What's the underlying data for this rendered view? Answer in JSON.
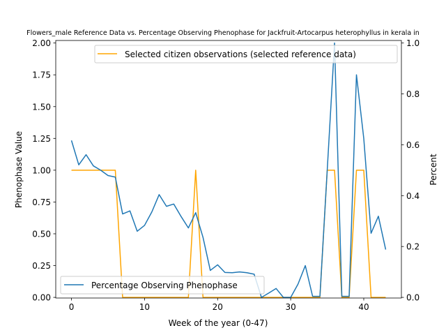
{
  "chart_data": {
    "type": "line",
    "title": "Flowers_male Reference Data vs. Percentage Observing Phenophase for Jackfruit-Artocarpus heterophyllus in kerala in",
    "xlabel": "Week of the year (0-47)",
    "ylabel_left": "Phenophase Value",
    "ylabel_right": "Percent",
    "xlim": [
      -2.15,
      45.15
    ],
    "ylim_left": [
      -0.005,
      2.02
    ],
    "ylim_right": [
      -0.0025,
      1.01
    ],
    "x_ticks": [
      0,
      10,
      20,
      30,
      40
    ],
    "y_ticks_left": [
      0.0,
      0.25,
      0.5,
      0.75,
      1.0,
      1.25,
      1.5,
      1.75,
      2.0
    ],
    "y_ticks_left_labels": [
      "0.00",
      "0.25",
      "0.50",
      "0.75",
      "1.00",
      "1.25",
      "1.50",
      "1.75",
      "2.00"
    ],
    "y_ticks_right": [
      0.0,
      0.2,
      0.4,
      0.6,
      0.8,
      1.0
    ],
    "y_ticks_right_labels": [
      "0.0",
      "0.2",
      "0.4",
      "0.6",
      "0.8",
      "1.0"
    ],
    "x_tick_labels": [
      "0",
      "10",
      "20",
      "30",
      "40"
    ],
    "series": [
      {
        "name": "Selected citizen observations (selected reference data)",
        "color": "#ffa500",
        "axis": "left",
        "x": [
          0,
          1,
          2,
          3,
          4,
          5,
          6,
          7,
          8,
          9,
          10,
          11,
          12,
          13,
          14,
          15,
          16,
          17,
          18,
          19,
          20,
          21,
          22,
          23,
          24,
          25,
          26,
          27,
          28,
          29,
          30,
          31,
          32,
          33,
          34,
          35,
          36,
          37,
          38,
          39,
          40,
          41,
          42,
          43
        ],
        "y": [
          1,
          1,
          1,
          1,
          1,
          1,
          1,
          0,
          0,
          0,
          0,
          0,
          0,
          0,
          0,
          0,
          0,
          1,
          0,
          0,
          0,
          0,
          0,
          0,
          0,
          0,
          0,
          0,
          0,
          0,
          0,
          0,
          0,
          0,
          0,
          1,
          1,
          0,
          0,
          1,
          1,
          0,
          0,
          0
        ]
      },
      {
        "name": "Percentage Observing Phenophase",
        "color": "#1f77b4",
        "axis": "right",
        "x": [
          0,
          1,
          2,
          3,
          4,
          5,
          6,
          7,
          8,
          9,
          10,
          11,
          12,
          13,
          14,
          15,
          16,
          17,
          18,
          19,
          20,
          21,
          22,
          23,
          24,
          25,
          26,
          27,
          28,
          29,
          30,
          31,
          32,
          33,
          34,
          35,
          36,
          37,
          38,
          39,
          40,
          41,
          42,
          43
        ],
        "y": [
          0.617,
          0.521,
          0.561,
          0.517,
          0.5,
          0.479,
          0.473,
          0.328,
          0.34,
          0.26,
          0.283,
          0.336,
          0.404,
          0.358,
          0.367,
          0.318,
          0.273,
          0.333,
          0.236,
          0.106,
          0.128,
          0.098,
          0.097,
          0.1,
          0.097,
          0.091,
          0.0,
          0.017,
          0.035,
          0.0,
          0.0,
          0.052,
          0.125,
          0.004,
          0.004,
          0.5,
          1.0,
          0.004,
          0.004,
          0.875,
          0.625,
          0.252,
          0.319,
          0.188
        ]
      }
    ],
    "legends": [
      {
        "label": "Selected citizen observations (selected reference data)",
        "position": "upper-right"
      },
      {
        "label": "Percentage Observing Phenophase",
        "position": "lower-left"
      }
    ],
    "grid": false
  }
}
